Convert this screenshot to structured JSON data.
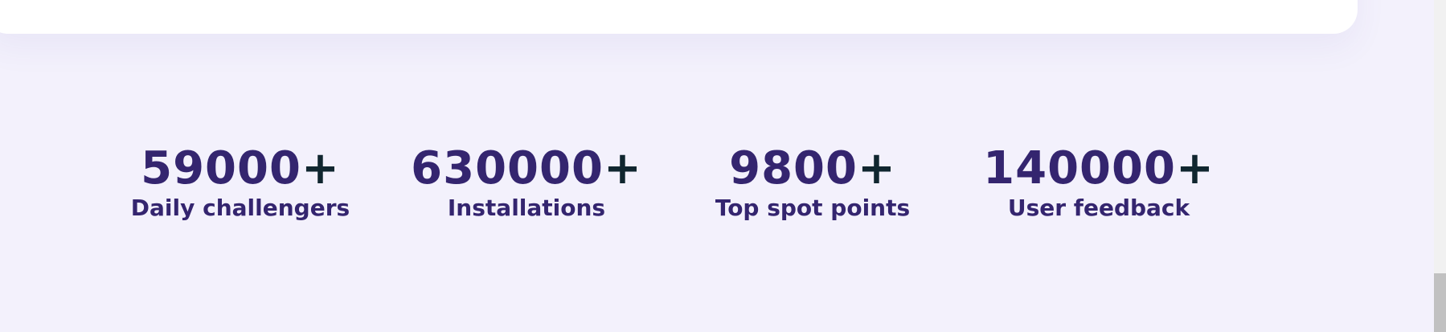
{
  "stats": [
    {
      "value": "59000",
      "suffix": "+",
      "label": "Daily challengers"
    },
    {
      "value": "630000",
      "suffix": "+",
      "label": "Installations"
    },
    {
      "value": "9800",
      "suffix": "+",
      "label": "Top spot points"
    },
    {
      "value": "140000",
      "suffix": "+",
      "label": "User feedback"
    }
  ],
  "colors": {
    "background": "#f3f1fc",
    "card": "#ffffff",
    "stat_text": "#34256f",
    "plus_sign": "#10262f"
  }
}
